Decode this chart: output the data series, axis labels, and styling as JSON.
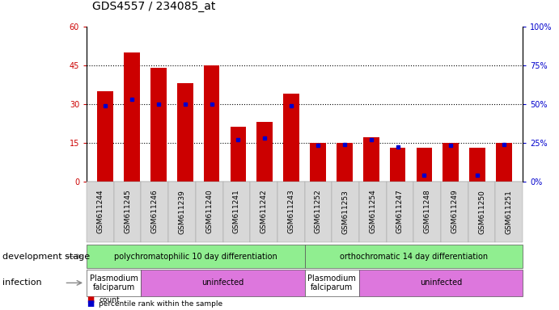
{
  "title": "GDS4557 / 234085_at",
  "samples": [
    "GSM611244",
    "GSM611245",
    "GSM611246",
    "GSM611239",
    "GSM611240",
    "GSM611241",
    "GSM611242",
    "GSM611243",
    "GSM611252",
    "GSM611253",
    "GSM611254",
    "GSM611247",
    "GSM611248",
    "GSM611249",
    "GSM611250",
    "GSM611251"
  ],
  "counts": [
    35,
    50,
    44,
    38,
    45,
    21,
    23,
    34,
    15,
    15,
    17,
    13,
    13,
    15,
    13,
    15
  ],
  "percentiles": [
    49,
    53,
    50,
    50,
    50,
    27,
    28,
    49,
    23,
    24,
    27,
    22,
    4,
    23,
    4,
    24
  ],
  "ylim_left": [
    0,
    60
  ],
  "ylim_right": [
    0,
    100
  ],
  "yticks_left": [
    0,
    15,
    30,
    45,
    60
  ],
  "ytick_labels_left": [
    "0",
    "15",
    "30",
    "45",
    "60"
  ],
  "yticks_right": [
    0,
    25,
    50,
    75,
    100
  ],
  "ytick_labels_right": [
    "0%",
    "25%",
    "50%",
    "75%",
    "100%"
  ],
  "bar_color": "#cc0000",
  "dot_color": "#0000cc",
  "dev_stage_groups": [
    {
      "label": "polychromatophilic 10 day differentiation",
      "start": 0,
      "end": 8,
      "color": "#90ee90"
    },
    {
      "label": "orthochromatic 14 day differentiation",
      "start": 8,
      "end": 16,
      "color": "#90ee90"
    }
  ],
  "infection_groups": [
    {
      "label": "Plasmodium\nfalciparum",
      "start": 0,
      "end": 2,
      "color": "#ffffff"
    },
    {
      "label": "uninfected",
      "start": 2,
      "end": 8,
      "color": "#dd77dd"
    },
    {
      "label": "Plasmodium\nfalciparum",
      "start": 8,
      "end": 10,
      "color": "#ffffff"
    },
    {
      "label": "uninfected",
      "start": 10,
      "end": 16,
      "color": "#dd77dd"
    }
  ],
  "title_fontsize": 10,
  "tick_fontsize": 7,
  "annot_fontsize": 7,
  "label_fontsize": 8
}
